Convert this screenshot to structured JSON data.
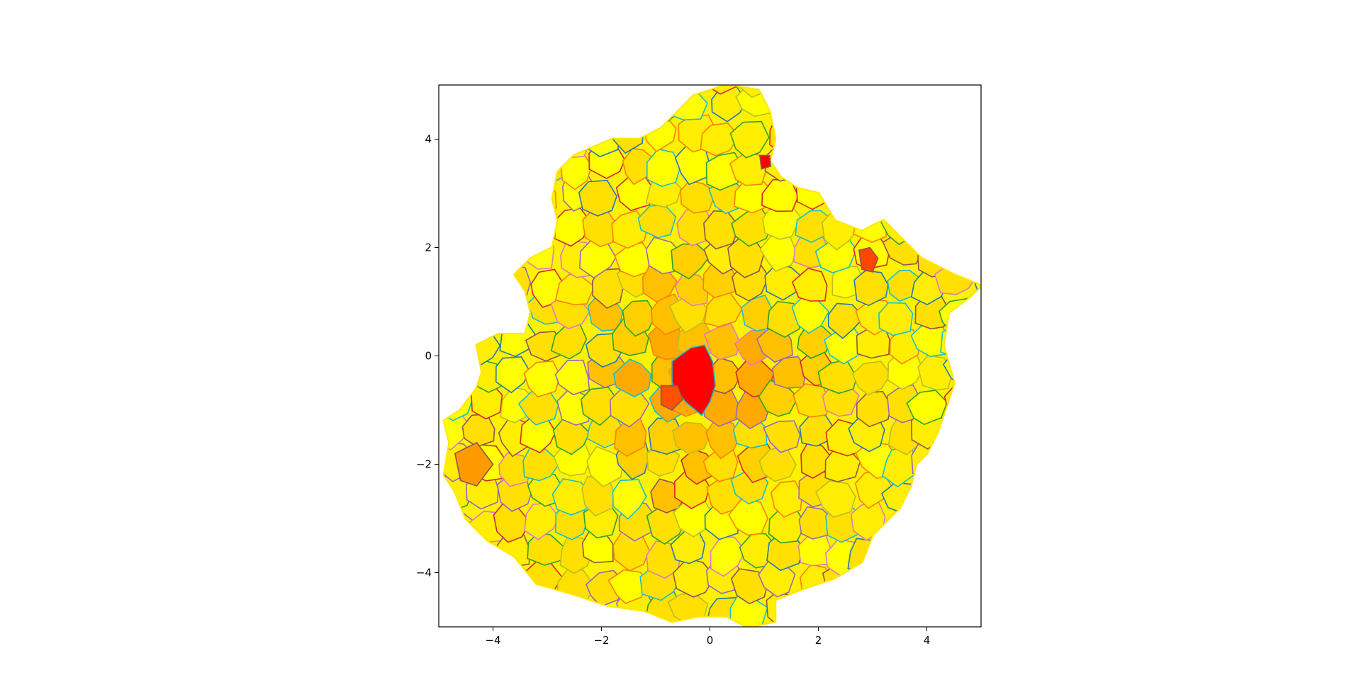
{
  "chart_data": {
    "type": "choropleth-map",
    "xlim": [
      -5,
      5
    ],
    "ylim": [
      -5,
      5
    ],
    "x_ticks": [
      "−4",
      "−2",
      "0",
      "2",
      "4"
    ],
    "y_ticks": [
      "4",
      "2",
      "0",
      "−2",
      "−4"
    ],
    "x_tick_values": [
      -4,
      -2,
      0,
      2,
      4
    ],
    "y_tick_values": [
      4,
      2,
      0,
      -2,
      -4
    ],
    "fill_palette": [
      "#ffff00",
      "#ffee00",
      "#ffe000",
      "#ffd000",
      "#ffc000",
      "#ffaa00"
    ],
    "hotspot_colors": {
      "center": "#ff0000",
      "north": "#ff0000",
      "east": "#ff4500",
      "west_center": "#ff5000",
      "southwest": "#ff9900"
    },
    "border_colors": [
      "#d62728",
      "#1f77b4",
      "#17becf",
      "#2ca02c",
      "#e377c2",
      "#8c564b",
      "#bcbd22",
      "#9467bd",
      "#ff7f0e"
    ],
    "outline": [
      [
        0.3,
        5.0
      ],
      [
        0.9,
        4.9
      ],
      [
        1.1,
        4.5
      ],
      [
        1.2,
        4.0
      ],
      [
        1.1,
        3.6
      ],
      [
        1.3,
        3.3
      ],
      [
        1.6,
        3.1
      ],
      [
        2.0,
        3.0
      ],
      [
        2.3,
        2.5
      ],
      [
        2.8,
        2.3
      ],
      [
        3.2,
        2.5
      ],
      [
        3.5,
        2.2
      ],
      [
        3.9,
        1.8
      ],
      [
        4.5,
        1.5
      ],
      [
        5.0,
        1.3
      ],
      [
        4.8,
        1.1
      ],
      [
        4.4,
        0.8
      ],
      [
        4.3,
        0.2
      ],
      [
        4.5,
        -0.5
      ],
      [
        4.2,
        -1.4
      ],
      [
        4.0,
        -1.8
      ],
      [
        3.8,
        -2.0
      ],
      [
        3.7,
        -2.4
      ],
      [
        3.5,
        -2.8
      ],
      [
        3.0,
        -3.3
      ],
      [
        2.8,
        -3.8
      ],
      [
        2.3,
        -4.1
      ],
      [
        1.7,
        -4.3
      ],
      [
        1.2,
        -4.5
      ],
      [
        1.2,
        -4.9
      ],
      [
        0.7,
        -5.0
      ],
      [
        0.3,
        -4.8
      ],
      [
        -0.2,
        -4.8
      ],
      [
        -0.7,
        -4.9
      ],
      [
        -1.2,
        -4.7
      ],
      [
        -1.9,
        -4.6
      ],
      [
        -2.5,
        -4.4
      ],
      [
        -3.2,
        -4.2
      ],
      [
        -3.6,
        -3.7
      ],
      [
        -4.1,
        -3.4
      ],
      [
        -4.5,
        -3.0
      ],
      [
        -4.7,
        -2.5
      ],
      [
        -4.9,
        -2.2
      ],
      [
        -4.8,
        -1.6
      ],
      [
        -4.9,
        -1.2
      ],
      [
        -4.6,
        -1.0
      ],
      [
        -4.3,
        -0.6
      ],
      [
        -4.2,
        -0.3
      ],
      [
        -4.3,
        0.2
      ],
      [
        -3.9,
        0.4
      ],
      [
        -3.4,
        0.4
      ],
      [
        -3.3,
        0.8
      ],
      [
        -3.4,
        1.2
      ],
      [
        -3.6,
        1.5
      ],
      [
        -3.3,
        1.8
      ],
      [
        -2.9,
        2.0
      ],
      [
        -2.8,
        2.5
      ],
      [
        -2.9,
        2.9
      ],
      [
        -2.8,
        3.4
      ],
      [
        -2.5,
        3.7
      ],
      [
        -1.8,
        4.0
      ],
      [
        -1.3,
        4.0
      ],
      [
        -0.9,
        4.2
      ],
      [
        -0.6,
        4.5
      ],
      [
        -0.3,
        4.8
      ],
      [
        0.3,
        5.0
      ]
    ],
    "hotspots": [
      {
        "name": "center",
        "points": [
          [
            -0.7,
            -0.1
          ],
          [
            -0.35,
            0.15
          ],
          [
            -0.1,
            0.2
          ],
          [
            0.05,
            -0.1
          ],
          [
            0.1,
            -0.55
          ],
          [
            0.0,
            -0.85
          ],
          [
            -0.15,
            -1.1
          ],
          [
            -0.45,
            -0.85
          ],
          [
            -0.7,
            -0.5
          ]
        ]
      },
      {
        "name": "west_center",
        "points": [
          [
            -0.9,
            -0.55
          ],
          [
            -0.6,
            -0.55
          ],
          [
            -0.5,
            -0.8
          ],
          [
            -0.7,
            -1.0
          ],
          [
            -0.9,
            -0.9
          ]
        ]
      },
      {
        "name": "north",
        "points": [
          [
            0.92,
            3.7
          ],
          [
            1.1,
            3.7
          ],
          [
            1.12,
            3.5
          ],
          [
            0.95,
            3.45
          ]
        ]
      },
      {
        "name": "east",
        "points": [
          [
            2.75,
            1.95
          ],
          [
            2.95,
            2.0
          ],
          [
            3.1,
            1.8
          ],
          [
            3.0,
            1.55
          ],
          [
            2.8,
            1.6
          ]
        ]
      },
      {
        "name": "southwest",
        "points": [
          [
            -4.7,
            -1.8
          ],
          [
            -4.3,
            -1.6
          ],
          [
            -4.0,
            -2.0
          ],
          [
            -4.3,
            -2.4
          ],
          [
            -4.6,
            -2.3
          ]
        ]
      }
    ],
    "grid": false,
    "legend": "none"
  }
}
